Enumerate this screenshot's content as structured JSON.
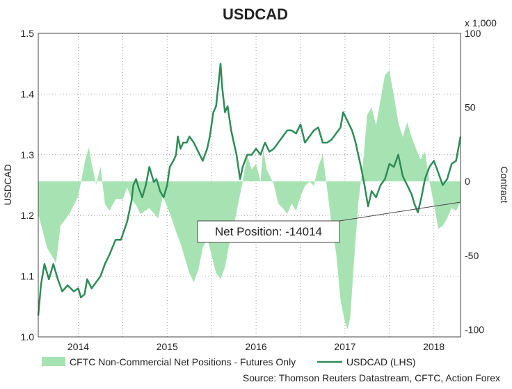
{
  "chart_data": {
    "type": "area+line",
    "title": "USDCAD",
    "ylabel_left": "USDCAD",
    "ylabel_right": "Contract",
    "right_unit_label": "x 1,000",
    "source": "Source: Thomson Reuters Datastream, CFTC, Action Forex",
    "left_axis": {
      "ylim": [
        1.0,
        1.5
      ],
      "ticks": [
        "1.0",
        "1.1",
        "1.2",
        "1.3",
        "1.4",
        "1.5"
      ]
    },
    "right_axis": {
      "ylim": [
        -105,
        100
      ],
      "ticks": [
        "-100",
        "-50",
        "0",
        "50",
        "100"
      ]
    },
    "x_axis": {
      "xlim": [
        2013.55,
        2018.3
      ],
      "ticks": [
        2014,
        2015,
        2016,
        2017,
        2018
      ],
      "tick_labels": [
        "2014",
        "2015",
        "2016",
        "2017",
        "2018"
      ]
    },
    "grid": "dotted",
    "legend_position": "bottom",
    "colors": {
      "area_fill": "#a7e3b2",
      "line": "#2e8b57",
      "callout_border": "#444444"
    },
    "series": [
      {
        "name": "CFTC Non-Commercial Net Positions - Futures Only",
        "kind": "area",
        "axis": "right",
        "points": [
          [
            2013.55,
            -22
          ],
          [
            2013.65,
            -45
          ],
          [
            2013.75,
            -55
          ],
          [
            2013.8,
            -30
          ],
          [
            2013.9,
            -22
          ],
          [
            2014.0,
            -10
          ],
          [
            2014.08,
            15
          ],
          [
            2014.12,
            23
          ],
          [
            2014.15,
            12
          ],
          [
            2014.2,
            -2
          ],
          [
            2014.25,
            10
          ],
          [
            2014.3,
            -15
          ],
          [
            2014.35,
            -20
          ],
          [
            2014.42,
            -12
          ],
          [
            2014.5,
            -12
          ],
          [
            2014.55,
            -4
          ],
          [
            2014.6,
            -12
          ],
          [
            2014.65,
            -16
          ],
          [
            2014.7,
            -22
          ],
          [
            2014.8,
            -18
          ],
          [
            2014.9,
            -25
          ],
          [
            2014.95,
            -10
          ],
          [
            2015.0,
            -17
          ],
          [
            2015.05,
            -25
          ],
          [
            2015.1,
            -34
          ],
          [
            2015.15,
            -42
          ],
          [
            2015.2,
            -52
          ],
          [
            2015.25,
            -62
          ],
          [
            2015.3,
            -68
          ],
          [
            2015.35,
            -60
          ],
          [
            2015.4,
            -45
          ],
          [
            2015.45,
            -38
          ],
          [
            2015.5,
            -50
          ],
          [
            2015.55,
            -62
          ],
          [
            2015.6,
            -66
          ],
          [
            2015.65,
            -58
          ],
          [
            2015.7,
            -42
          ],
          [
            2015.75,
            -30
          ],
          [
            2015.8,
            -15
          ],
          [
            2015.85,
            0
          ],
          [
            2015.9,
            18
          ],
          [
            2015.95,
            8
          ],
          [
            2016.0,
            12
          ],
          [
            2016.05,
            0
          ],
          [
            2016.08,
            22
          ],
          [
            2016.12,
            8
          ],
          [
            2016.2,
            -2
          ],
          [
            2016.25,
            -15
          ],
          [
            2016.3,
            -18
          ],
          [
            2016.35,
            -22
          ],
          [
            2016.4,
            -15
          ],
          [
            2016.45,
            -20
          ],
          [
            2016.5,
            -10
          ],
          [
            2016.55,
            -3
          ],
          [
            2016.6,
            0
          ],
          [
            2016.65,
            -3
          ],
          [
            2016.7,
            10
          ],
          [
            2016.75,
            18
          ],
          [
            2016.8,
            -5
          ],
          [
            2016.85,
            -30
          ],
          [
            2016.9,
            -48
          ],
          [
            2016.95,
            -80
          ],
          [
            2017.0,
            -95
          ],
          [
            2017.03,
            -100
          ],
          [
            2017.06,
            -92
          ],
          [
            2017.1,
            -55
          ],
          [
            2017.15,
            -15
          ],
          [
            2017.2,
            10
          ],
          [
            2017.25,
            45
          ],
          [
            2017.3,
            50
          ],
          [
            2017.35,
            38
          ],
          [
            2017.4,
            55
          ],
          [
            2017.45,
            72
          ],
          [
            2017.5,
            75
          ],
          [
            2017.52,
            68
          ],
          [
            2017.55,
            58
          ],
          [
            2017.6,
            40
          ],
          [
            2017.65,
            30
          ],
          [
            2017.7,
            40
          ],
          [
            2017.75,
            30
          ],
          [
            2017.8,
            22
          ],
          [
            2017.85,
            15
          ],
          [
            2017.9,
            20
          ],
          [
            2017.95,
            0
          ],
          [
            2018.0,
            -15
          ],
          [
            2018.05,
            -32
          ],
          [
            2018.1,
            -30
          ],
          [
            2018.15,
            -25
          ],
          [
            2018.2,
            -18
          ],
          [
            2018.25,
            -20
          ],
          [
            2018.3,
            -14
          ]
        ]
      },
      {
        "name": "USDCAD (LHS)",
        "kind": "line",
        "axis": "left",
        "points": [
          [
            2013.55,
            1.035
          ],
          [
            2013.58,
            1.085
          ],
          [
            2013.62,
            1.12
          ],
          [
            2013.67,
            1.095
          ],
          [
            2013.72,
            1.12
          ],
          [
            2013.77,
            1.095
          ],
          [
            2013.82,
            1.075
          ],
          [
            2013.88,
            1.085
          ],
          [
            2013.95,
            1.075
          ],
          [
            2014.0,
            1.08
          ],
          [
            2014.03,
            1.065
          ],
          [
            2014.07,
            1.07
          ],
          [
            2014.1,
            1.095
          ],
          [
            2014.15,
            1.08
          ],
          [
            2014.2,
            1.09
          ],
          [
            2014.25,
            1.1
          ],
          [
            2014.3,
            1.12
          ],
          [
            2014.35,
            1.135
          ],
          [
            2014.42,
            1.16
          ],
          [
            2014.48,
            1.16
          ],
          [
            2014.55,
            1.19
          ],
          [
            2014.6,
            1.225
          ],
          [
            2014.62,
            1.25
          ],
          [
            2014.65,
            1.26
          ],
          [
            2014.68,
            1.245
          ],
          [
            2014.72,
            1.23
          ],
          [
            2014.76,
            1.25
          ],
          [
            2014.8,
            1.28
          ],
          [
            2014.85,
            1.255
          ],
          [
            2014.88,
            1.26
          ],
          [
            2014.92,
            1.24
          ],
          [
            2014.96,
            1.23
          ],
          [
            2015.0,
            1.25
          ],
          [
            2015.03,
            1.28
          ],
          [
            2015.07,
            1.29
          ],
          [
            2015.1,
            1.3
          ],
          [
            2015.12,
            1.33
          ],
          [
            2015.15,
            1.31
          ],
          [
            2015.18,
            1.32
          ],
          [
            2015.22,
            1.32
          ],
          [
            2015.25,
            1.33
          ],
          [
            2015.3,
            1.32
          ],
          [
            2015.35,
            1.305
          ],
          [
            2015.4,
            1.29
          ],
          [
            2015.45,
            1.31
          ],
          [
            2015.48,
            1.33
          ],
          [
            2015.52,
            1.37
          ],
          [
            2015.55,
            1.38
          ],
          [
            2015.58,
            1.42
          ],
          [
            2015.6,
            1.45
          ],
          [
            2015.62,
            1.41
          ],
          [
            2015.65,
            1.37
          ],
          [
            2015.68,
            1.38
          ],
          [
            2015.72,
            1.34
          ],
          [
            2015.75,
            1.32
          ],
          [
            2015.78,
            1.3
          ],
          [
            2015.82,
            1.26
          ],
          [
            2015.85,
            1.28
          ],
          [
            2015.9,
            1.3
          ],
          [
            2015.95,
            1.3
          ],
          [
            2016.0,
            1.31
          ],
          [
            2016.05,
            1.3
          ],
          [
            2016.1,
            1.32
          ],
          [
            2016.15,
            1.305
          ],
          [
            2016.2,
            1.31
          ],
          [
            2016.25,
            1.32
          ],
          [
            2016.3,
            1.33
          ],
          [
            2016.35,
            1.34
          ],
          [
            2016.4,
            1.34
          ],
          [
            2016.45,
            1.335
          ],
          [
            2016.5,
            1.35
          ],
          [
            2016.55,
            1.32
          ],
          [
            2016.6,
            1.33
          ],
          [
            2016.65,
            1.34
          ],
          [
            2016.7,
            1.345
          ],
          [
            2016.75,
            1.32
          ],
          [
            2016.8,
            1.32
          ],
          [
            2016.85,
            1.325
          ],
          [
            2016.9,
            1.335
          ],
          [
            2016.95,
            1.345
          ],
          [
            2016.98,
            1.37
          ],
          [
            2017.03,
            1.355
          ],
          [
            2017.08,
            1.34
          ],
          [
            2017.12,
            1.32
          ],
          [
            2017.15,
            1.3
          ],
          [
            2017.18,
            1.28
          ],
          [
            2017.22,
            1.25
          ],
          [
            2017.26,
            1.215
          ],
          [
            2017.3,
            1.24
          ],
          [
            2017.35,
            1.23
          ],
          [
            2017.4,
            1.25
          ],
          [
            2017.45,
            1.26
          ],
          [
            2017.5,
            1.285
          ],
          [
            2017.55,
            1.28
          ],
          [
            2017.6,
            1.3
          ],
          [
            2017.65,
            1.265
          ],
          [
            2017.7,
            1.25
          ],
          [
            2017.75,
            1.235
          ],
          [
            2017.78,
            1.22
          ],
          [
            2017.82,
            1.205
          ],
          [
            2017.86,
            1.23
          ],
          [
            2017.9,
            1.26
          ],
          [
            2017.95,
            1.28
          ],
          [
            2018.0,
            1.29
          ],
          [
            2018.05,
            1.27
          ],
          [
            2018.1,
            1.25
          ],
          [
            2018.15,
            1.26
          ],
          [
            2018.2,
            1.285
          ],
          [
            2018.25,
            1.29
          ],
          [
            2018.3,
            1.33
          ]
        ]
      }
    ],
    "annotation": {
      "text": "Net Position: -14014",
      "points_to": [
        2018.3,
        -14
      ]
    }
  }
}
